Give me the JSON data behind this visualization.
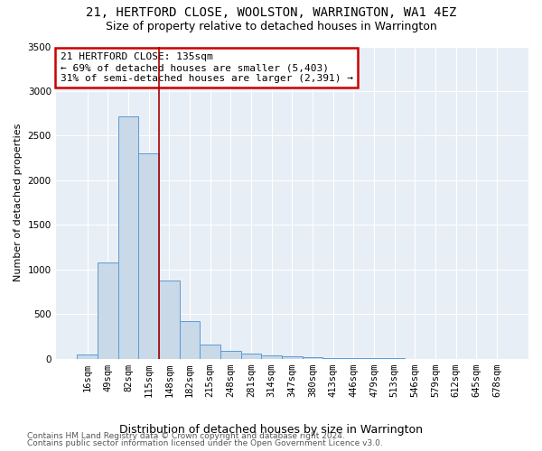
{
  "title": "21, HERTFORD CLOSE, WOOLSTON, WARRINGTON, WA1 4EZ",
  "subtitle": "Size of property relative to detached houses in Warrington",
  "xlabel": "Distribution of detached houses by size in Warrington",
  "ylabel": "Number of detached properties",
  "footer_line1": "Contains HM Land Registry data © Crown copyright and database right 2024.",
  "footer_line2": "Contains public sector information licensed under the Open Government Licence v3.0.",
  "annotation_line1": "21 HERTFORD CLOSE: 135sqm",
  "annotation_line2": "← 69% of detached houses are smaller (5,403)",
  "annotation_line3": "31% of semi-detached houses are larger (2,391) →",
  "bar_color": "#c9d9e8",
  "bar_edge_color": "#5b9bd5",
  "vline_color": "#aa0000",
  "annotation_box_edge_color": "#cc0000",
  "plot_bg_color": "#e8eef5",
  "categories": [
    "16sqm",
    "49sqm",
    "82sqm",
    "115sqm",
    "148sqm",
    "182sqm",
    "215sqm",
    "248sqm",
    "281sqm",
    "314sqm",
    "347sqm",
    "380sqm",
    "413sqm",
    "446sqm",
    "479sqm",
    "513sqm",
    "546sqm",
    "579sqm",
    "612sqm",
    "645sqm",
    "678sqm"
  ],
  "values": [
    50,
    1080,
    2720,
    2300,
    880,
    420,
    155,
    85,
    55,
    40,
    25,
    15,
    8,
    5,
    3,
    2,
    1,
    1,
    0,
    0,
    0
  ],
  "ylim": [
    0,
    3500
  ],
  "yticks": [
    0,
    500,
    1000,
    1500,
    2000,
    2500,
    3000,
    3500
  ],
  "vline_x": 3.5,
  "title_fontsize": 10,
  "subtitle_fontsize": 9,
  "xlabel_fontsize": 9,
  "ylabel_fontsize": 8,
  "tick_fontsize": 7.5,
  "annotation_fontsize": 8,
  "footer_fontsize": 6.5
}
